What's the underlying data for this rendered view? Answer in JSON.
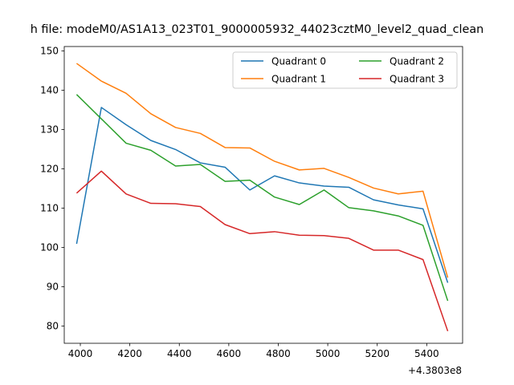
{
  "chart_data": {
    "type": "line",
    "title": "h file: modeM0/AS1A13_023T01_9000005932_44023cztM0_level2_quad_clean",
    "x_offset_label": "+4.3803e8",
    "xlabel": "",
    "ylabel": "",
    "xlim": [
      3935,
      5545
    ],
    "ylim": [
      75.6,
      151.1
    ],
    "x_ticks": [
      4000,
      4200,
      4400,
      4600,
      4800,
      5000,
      5200,
      5400
    ],
    "x_tick_labels": [
      "4000",
      "4200",
      "4400",
      "4600",
      "4800",
      "5000",
      "5200",
      "5400"
    ],
    "y_ticks": [
      80,
      90,
      100,
      110,
      120,
      130,
      140,
      150
    ],
    "y_tick_labels": [
      "80",
      "90",
      "100",
      "110",
      "120",
      "130",
      "140",
      "150"
    ],
    "grid": false,
    "legend_position": "top-right",
    "legend_columns": 2,
    "x": [
      3985,
      4085,
      4185,
      4285,
      4385,
      4485,
      4585,
      4685,
      4785,
      4885,
      4985,
      5085,
      5185,
      5285,
      5385,
      5485
    ],
    "series": [
      {
        "name": "Quadrant 0",
        "color": "#1f77b4",
        "values": [
          100.9,
          135.6,
          131.2,
          127.2,
          124.9,
          121.5,
          120.4,
          114.6,
          118.2,
          116.4,
          115.6,
          115.3,
          112.1,
          110.8,
          109.8,
          91.0
        ]
      },
      {
        "name": "Quadrant 1",
        "color": "#ff7f0e",
        "values": [
          146.8,
          142.3,
          139.2,
          134.0,
          130.5,
          129.0,
          125.4,
          125.3,
          121.9,
          119.7,
          120.1,
          117.8,
          115.1,
          113.6,
          114.3,
          92.3
        ]
      },
      {
        "name": "Quadrant 2",
        "color": "#2ca02c",
        "values": [
          138.9,
          132.7,
          126.5,
          124.7,
          120.7,
          121.1,
          116.8,
          117.1,
          112.8,
          110.9,
          114.6,
          110.1,
          109.3,
          108.0,
          105.6,
          86.4
        ]
      },
      {
        "name": "Quadrant 3",
        "color": "#d62728",
        "values": [
          113.8,
          119.4,
          113.6,
          111.2,
          111.1,
          110.4,
          105.8,
          103.5,
          104.0,
          103.1,
          103.0,
          102.3,
          99.3,
          99.3,
          96.9,
          78.7
        ]
      }
    ]
  }
}
